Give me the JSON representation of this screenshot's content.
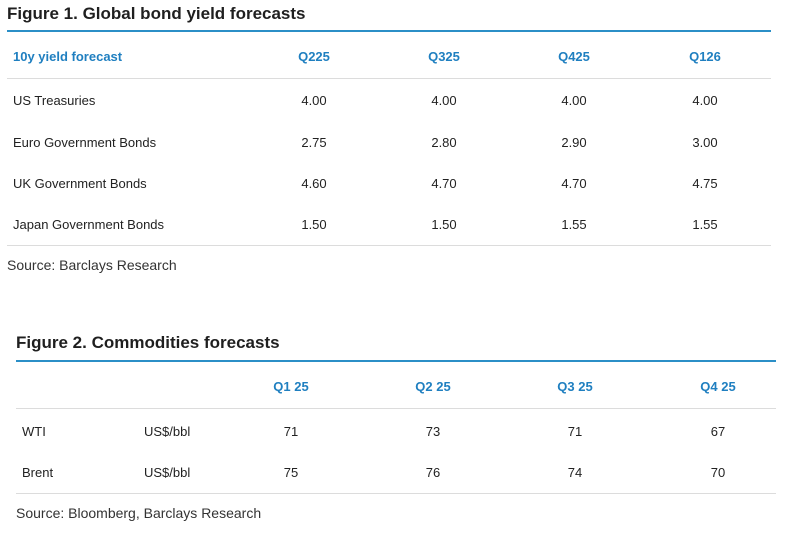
{
  "figure1": {
    "title": "Figure 1. Global bond yield forecasts",
    "header": [
      "10y yield forecast",
      "Q225",
      "Q325",
      "Q425",
      "Q126"
    ],
    "rows": [
      {
        "label": "US Treasuries",
        "values": [
          "4.00",
          "4.00",
          "4.00",
          "4.00"
        ]
      },
      {
        "label": "Euro Government Bonds",
        "values": [
          "2.75",
          "2.80",
          "2.90",
          "3.00"
        ]
      },
      {
        "label": "UK Government Bonds",
        "values": [
          "4.60",
          "4.70",
          "4.70",
          "4.75"
        ]
      },
      {
        "label": "Japan Government Bonds",
        "values": [
          "1.50",
          "1.50",
          "1.55",
          "1.55"
        ]
      }
    ],
    "source": "Source: Barclays Research"
  },
  "figure2": {
    "title": "Figure 2. Commodities forecasts",
    "header": [
      "",
      "",
      "Q1 25",
      "Q2 25",
      "Q3 25",
      "Q4 25"
    ],
    "rows": [
      {
        "label": "WTI",
        "unit": "US$/bbl",
        "values": [
          "71",
          "73",
          "71",
          "67"
        ]
      },
      {
        "label": "Brent",
        "unit": "US$/bbl",
        "values": [
          "75",
          "76",
          "74",
          "70"
        ]
      }
    ],
    "source": "Source: Bloomberg, Barclays Research"
  }
}
